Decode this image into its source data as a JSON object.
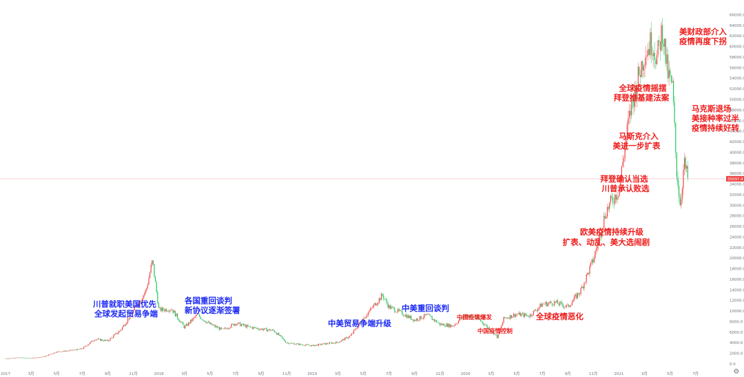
{
  "chart_data": {
    "type": "candlestick",
    "colors": {
      "up": "#ef4444",
      "down": "#22c55e",
      "blue_text": "#1d2bf5",
      "red_text": "#ef1c1c",
      "price_line": "#f5c6c6",
      "price_label_bg": "#ef4444"
    },
    "ylim": [
      0,
      66000
    ],
    "y_ticks": [
      "0.0",
      "2000.0",
      "4000.0",
      "6000.0",
      "8000.0",
      "10000.0",
      "12000.0",
      "14000.0",
      "16000.0",
      "18000.0",
      "20000.0",
      "22000.0",
      "24000.0",
      "26000.0",
      "28000.0",
      "30000.0",
      "32000.0",
      "34000.0",
      "36000.0",
      "38000.0",
      "40000.0",
      "42000.0",
      "44000.0",
      "46000.0",
      "48000.0",
      "50000.0",
      "52000.0",
      "54000.0",
      "56000.0",
      "58000.0",
      "60000.0",
      "62000.0",
      "64000.0",
      "66000.0"
    ],
    "x_ticks": [
      "2017",
      "3月",
      "5月",
      "7月",
      "9月",
      "11月",
      "2018",
      "3月",
      "5月",
      "7月",
      "9月",
      "11月",
      "2019",
      "3月",
      "5月",
      "7月",
      "9月",
      "11月",
      "2020",
      "3月",
      "5月",
      "7月",
      "9月",
      "11月",
      "2021",
      "3月",
      "5月",
      "7月"
    ],
    "current_price": {
      "value": 35000,
      "label": "35097.4"
    },
    "monthly_close": [
      {
        "t": 0,
        "v": 980
      },
      {
        "t": 1,
        "v": 1190
      },
      {
        "t": 2,
        "v": 1080
      },
      {
        "t": 3,
        "v": 1350
      },
      {
        "t": 4,
        "v": 2300
      },
      {
        "t": 5,
        "v": 2500
      },
      {
        "t": 6,
        "v": 2870
      },
      {
        "t": 7,
        "v": 4700
      },
      {
        "t": 8,
        "v": 4350
      },
      {
        "t": 9,
        "v": 6400
      },
      {
        "t": 10,
        "v": 10000
      },
      {
        "t": 11,
        "v": 13900
      },
      {
        "t": 11.5,
        "v": 19500
      },
      {
        "t": 12,
        "v": 10200
      },
      {
        "t": 13,
        "v": 10400
      },
      {
        "t": 14,
        "v": 6900
      },
      {
        "t": 15,
        "v": 9250
      },
      {
        "t": 16,
        "v": 7500
      },
      {
        "t": 17,
        "v": 6400
      },
      {
        "t": 18,
        "v": 7700
      },
      {
        "t": 19,
        "v": 7000
      },
      {
        "t": 20,
        "v": 6600
      },
      {
        "t": 21,
        "v": 6300
      },
      {
        "t": 22,
        "v": 4000
      },
      {
        "t": 23,
        "v": 3700
      },
      {
        "t": 24,
        "v": 3450
      },
      {
        "t": 25,
        "v": 3800
      },
      {
        "t": 26,
        "v": 4100
      },
      {
        "t": 27,
        "v": 5300
      },
      {
        "t": 28,
        "v": 8600
      },
      {
        "t": 29.5,
        "v": 13000
      },
      {
        "t": 30,
        "v": 10800
      },
      {
        "t": 31,
        "v": 9600
      },
      {
        "t": 32,
        "v": 8300
      },
      {
        "t": 33,
        "v": 9200
      },
      {
        "t": 34,
        "v": 7500
      },
      {
        "t": 35,
        "v": 7200
      },
      {
        "t": 36,
        "v": 9300
      },
      {
        "t": 37,
        "v": 8500
      },
      {
        "t": 38,
        "v": 6400
      },
      {
        "t": 38.5,
        "v": 5000
      },
      {
        "t": 39,
        "v": 8600
      },
      {
        "t": 40,
        "v": 9400
      },
      {
        "t": 41,
        "v": 9100
      },
      {
        "t": 42,
        "v": 11300
      },
      {
        "t": 43,
        "v": 11600
      },
      {
        "t": 44,
        "v": 10800
      },
      {
        "t": 45,
        "v": 13800
      },
      {
        "t": 46,
        "v": 19700
      },
      {
        "t": 47,
        "v": 29000
      },
      {
        "t": 48,
        "v": 33000
      },
      {
        "t": 48.7,
        "v": 45000
      },
      {
        "t": 49,
        "v": 49000
      },
      {
        "t": 50,
        "v": 58800
      },
      {
        "t": 50.6,
        "v": 61000
      },
      {
        "t": 51,
        "v": 57700
      },
      {
        "t": 51.4,
        "v": 63500
      },
      {
        "t": 51.8,
        "v": 55000
      },
      {
        "t": 52.2,
        "v": 52000
      },
      {
        "t": 52.5,
        "v": 37000
      },
      {
        "t": 52.8,
        "v": 30000
      },
      {
        "t": 53.1,
        "v": 38000
      },
      {
        "t": 53.4,
        "v": 35000
      }
    ],
    "annotations": [
      {
        "lines": [
          "川普就职美国优先",
          "全球发起贸易争端"
        ],
        "color": "blue",
        "size": "lg"
      },
      {
        "lines": [
          "各国重回谈判",
          "新协议逐渐签署"
        ],
        "color": "blue",
        "size": "lg"
      },
      {
        "lines": [
          "中美贸易争端升级"
        ],
        "color": "blue",
        "size": "lg"
      },
      {
        "lines": [
          "中美重回谈判"
        ],
        "color": "blue",
        "size": "lg"
      },
      {
        "lines": [
          "中国疫情爆发"
        ],
        "color": "red",
        "size": "sm"
      },
      {
        "lines": [
          "中国疫情控制"
        ],
        "color": "red",
        "size": "sm"
      },
      {
        "lines": [
          "全球疫情恶化"
        ],
        "color": "red",
        "size": "lg"
      },
      {
        "lines": [
          "欧美疫情持续升级",
          "扩表、动乱、美大选闹剧"
        ],
        "color": "red",
        "size": "lg"
      },
      {
        "lines": [
          "拜登确认当选",
          "川普承认败选"
        ],
        "color": "red",
        "size": "lg"
      },
      {
        "lines": [
          "马斯克介入",
          "美进一步扩表"
        ],
        "color": "red",
        "size": "lg"
      },
      {
        "lines": [
          "全球疫情摇摆",
          "拜登推基建法案"
        ],
        "color": "red",
        "size": "lg"
      },
      {
        "lines": [
          "美财政部介入",
          "疫情再度下拐"
        ],
        "color": "red",
        "size": "lg"
      },
      {
        "lines": [
          "马克斯退场",
          "美接种率过半",
          "疫情持续好转"
        ],
        "color": "red",
        "size": "lg"
      }
    ]
  },
  "settings_icon": "gear-icon"
}
